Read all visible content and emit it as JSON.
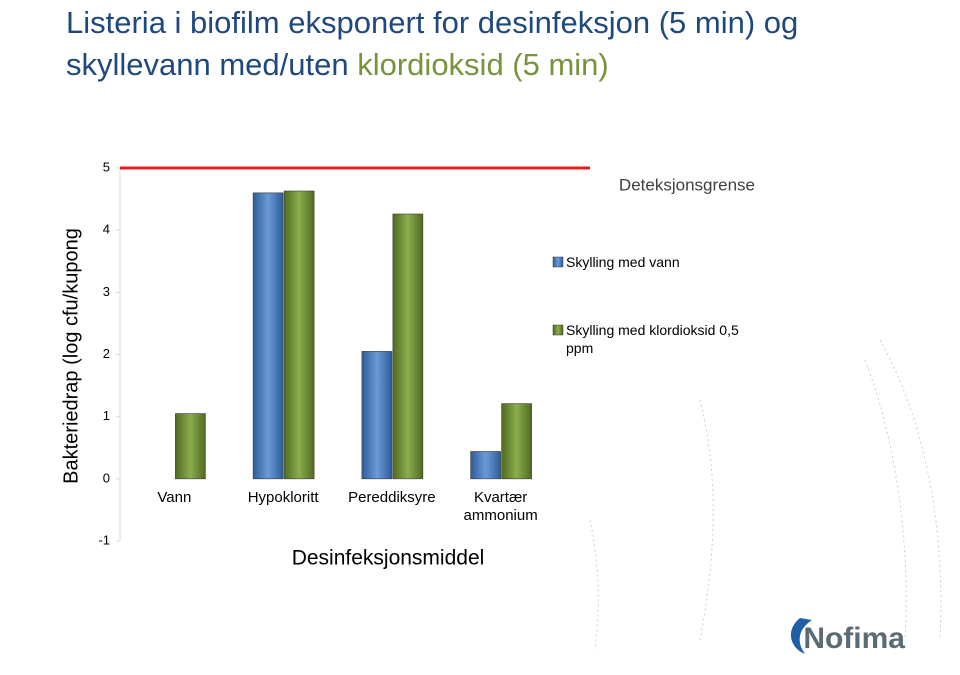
{
  "title": [
    "Listeria i biofilm eksponert for desinfeksjon (5 min) og skyllevann med/uten",
    "klordioksid (5 min)"
  ],
  "logo": "Nofima",
  "chart_data": {
    "type": "bar",
    "x_label": "Desinfeksjonsmiddel",
    "y_label": "Bakteriedrap (log cfu/kupong",
    "categories": [
      "Vann",
      "Hypokloritt",
      "Pereddiksyre",
      "Kvartær ammonium"
    ],
    "series": [
      {
        "name": "Skylling med vann",
        "color": "#4f81bd",
        "values": [
          null,
          4.6,
          2.05,
          0.44
        ]
      },
      {
        "name": "Skylling med klordioksid 0,5 ppm",
        "color": "#77933c",
        "values": [
          1.05,
          4.63,
          4.26,
          1.21
        ]
      }
    ],
    "ylim": [
      -1,
      5
    ],
    "yticks": [
      -1,
      0,
      1,
      2,
      3,
      4,
      5
    ],
    "threshold": {
      "value": 5,
      "label": "Deteksjonsgrense",
      "color": "#e01c1c"
    },
    "legend": "right"
  }
}
